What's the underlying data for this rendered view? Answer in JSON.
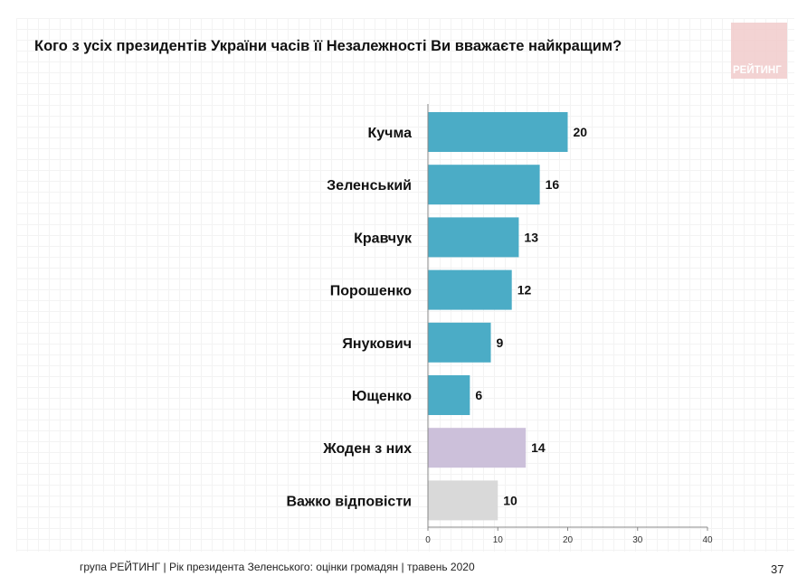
{
  "title": "Кого з усіх президентів України часів її Незалежності Ви вважаєте найкращим?",
  "logo_text": "РЕЙТИНГ",
  "footer": "група РЕЙТИНГ |  Рік президента Зеленського: оцінки громадян | травень 2020",
  "page_number": "37",
  "chart_data": {
    "type": "bar",
    "orientation": "horizontal",
    "categories": [
      "Кучма",
      "Зеленський",
      "Кравчук",
      "Порошенко",
      "Янукович",
      "Ющенко",
      "Жоден з них",
      "Важко відповісти"
    ],
    "values": [
      20,
      16,
      13,
      12,
      9,
      6,
      14,
      10
    ],
    "colors": [
      "#4bacc6",
      "#4bacc6",
      "#4bacc6",
      "#4bacc6",
      "#4bacc6",
      "#4bacc6",
      "#ccc0da",
      "#d9d9d9"
    ],
    "xlim": [
      0,
      40
    ],
    "xticks": [
      0,
      10,
      20,
      30,
      40
    ],
    "grid": false
  }
}
